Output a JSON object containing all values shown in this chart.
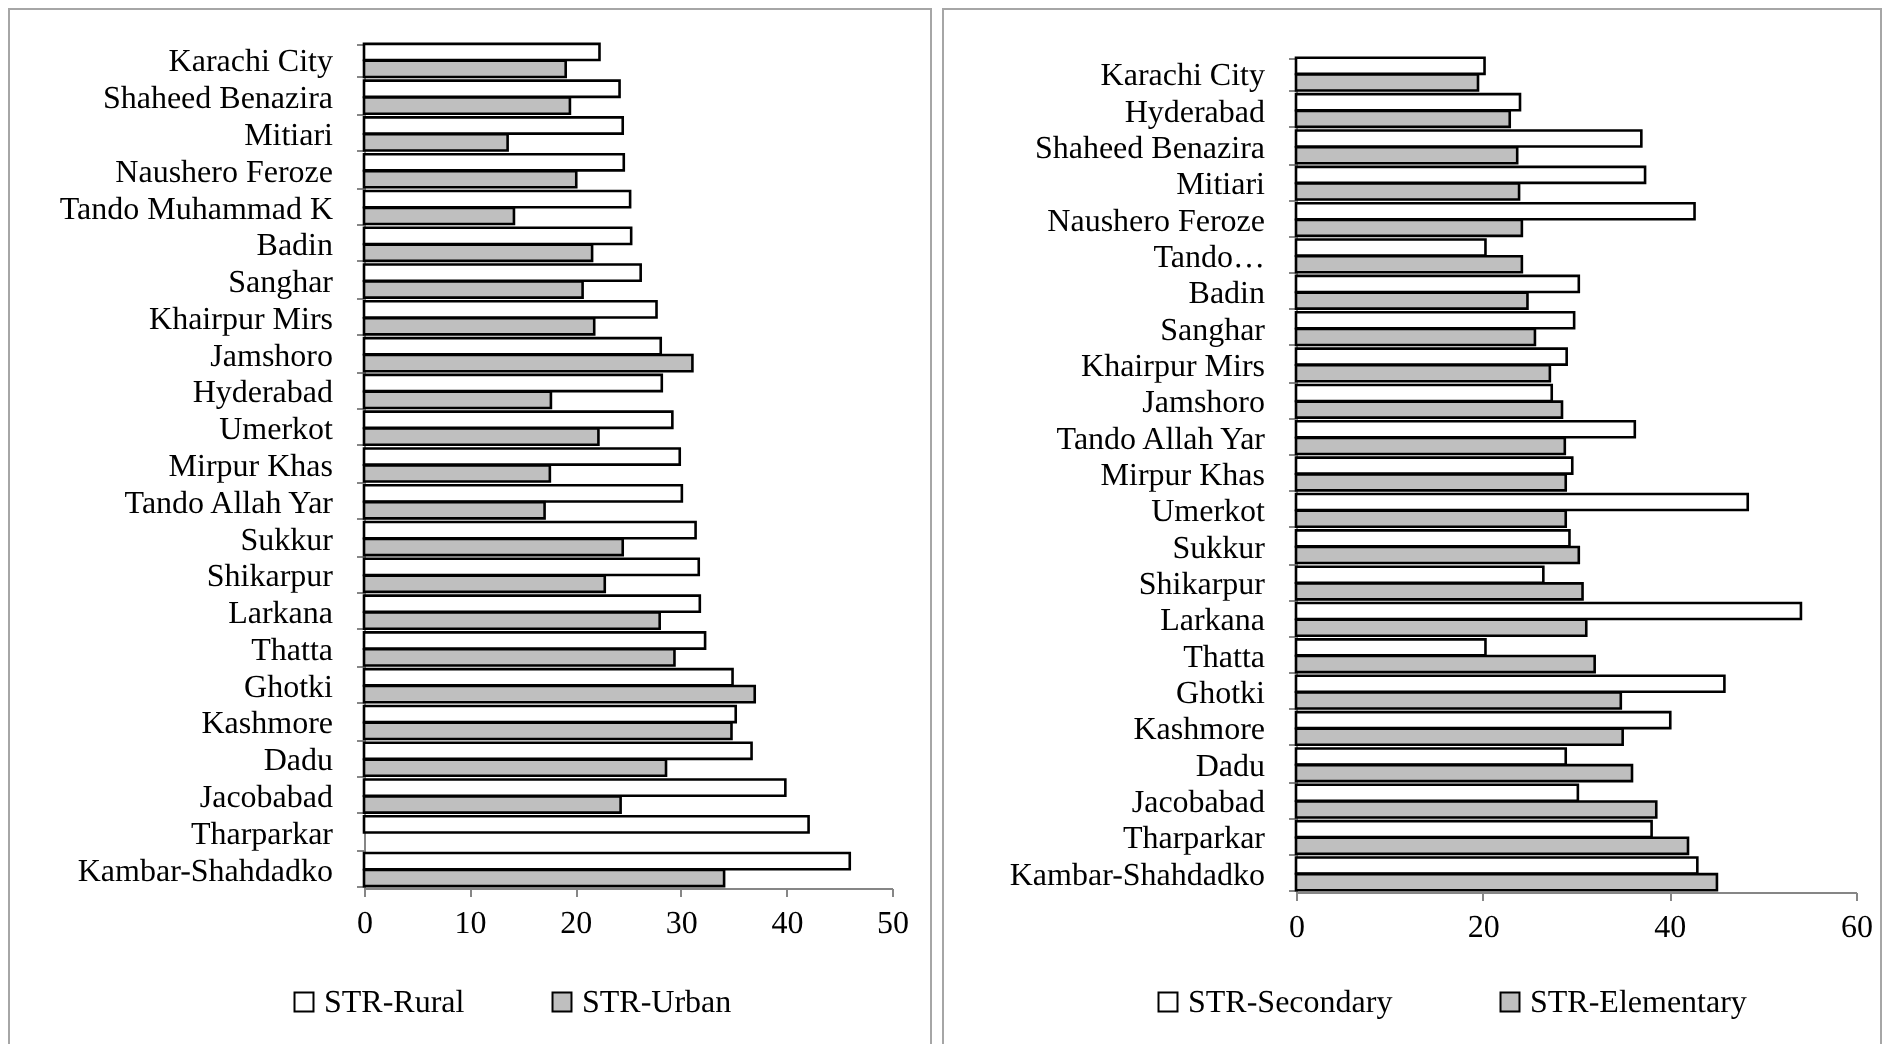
{
  "chart_data": [
    {
      "type": "bar",
      "orientation": "horizontal",
      "categories": [
        "Karachi City",
        "Shaheed Benazira",
        "Mitiari",
        "Naushero Feroze",
        "Tando Muhammad K",
        "Badin",
        "Sanghar",
        "Khairpur Mirs",
        "Jamshoro",
        "Hyderabad",
        "Umerkot",
        "Mirpur Khas",
        "Tando Allah Yar",
        "Sukkur",
        "Shikarpur",
        "Larkana",
        "Thatta",
        "Ghotki",
        "Kashmore",
        "Dadu",
        "Jacobabad",
        "Tharparkar",
        "Kambar-Shahdadko"
      ],
      "series": [
        {
          "name": "STR-Rural",
          "color": "#ffffff",
          "values": [
            22.3,
            24.2,
            24.5,
            24.6,
            25.2,
            25.3,
            26.2,
            27.7,
            28.1,
            28.2,
            29.2,
            29.9,
            30.1,
            31.4,
            31.7,
            31.8,
            32.3,
            34.9,
            35.2,
            36.7,
            39.9,
            42.1,
            46.0
          ]
        },
        {
          "name": "STR-Urban",
          "color": "#bfbfbf",
          "values": [
            19.1,
            19.5,
            13.6,
            20.1,
            14.2,
            21.6,
            20.7,
            21.8,
            31.1,
            17.7,
            22.2,
            17.6,
            17.1,
            24.5,
            22.8,
            28.0,
            29.4,
            37.0,
            34.8,
            28.6,
            24.3,
            null,
            34.1
          ]
        }
      ],
      "xlim": [
        0,
        50
      ],
      "xticks": [
        0,
        10,
        20,
        30,
        40,
        50
      ],
      "legend": "bottom"
    },
    {
      "type": "bar",
      "orientation": "horizontal",
      "categories": [
        "Karachi City",
        "Hyderabad",
        "Shaheed Benazira",
        "Mitiari",
        "Naushero Feroze",
        "Tando…",
        "Badin",
        "Sanghar",
        "Khairpur Mirs",
        "Jamshoro",
        "Tando Allah Yar",
        "Mirpur Khas",
        "Umerkot",
        "Sukkur",
        "Shikarpur",
        "Larkana",
        "Thatta",
        "Ghotki",
        "Kashmore",
        "Dadu",
        "Jacobabad",
        "Tharparkar",
        "Kambar-Shahdadko"
      ],
      "series": [
        {
          "name": "STR-Secondary",
          "color": "#ffffff",
          "values": [
            20.2,
            24.0,
            37.0,
            37.4,
            42.7,
            20.3,
            30.3,
            29.8,
            29.0,
            27.4,
            36.3,
            29.6,
            48.4,
            29.3,
            26.5,
            54.1,
            20.3,
            45.9,
            40.1,
            28.9,
            30.2,
            38.1,
            43.0
          ]
        },
        {
          "name": "STR-Elementary",
          "color": "#bfbfbf",
          "values": [
            19.5,
            22.9,
            23.7,
            23.9,
            24.2,
            24.2,
            24.8,
            25.6,
            27.2,
            28.5,
            28.8,
            28.9,
            28.9,
            30.3,
            30.7,
            31.1,
            32.0,
            34.8,
            35.0,
            36.0,
            38.6,
            42.0,
            45.1
          ]
        }
      ],
      "xlim": [
        0,
        60
      ],
      "xticks": [
        0,
        20,
        40,
        60
      ],
      "legend": "bottom"
    }
  ]
}
